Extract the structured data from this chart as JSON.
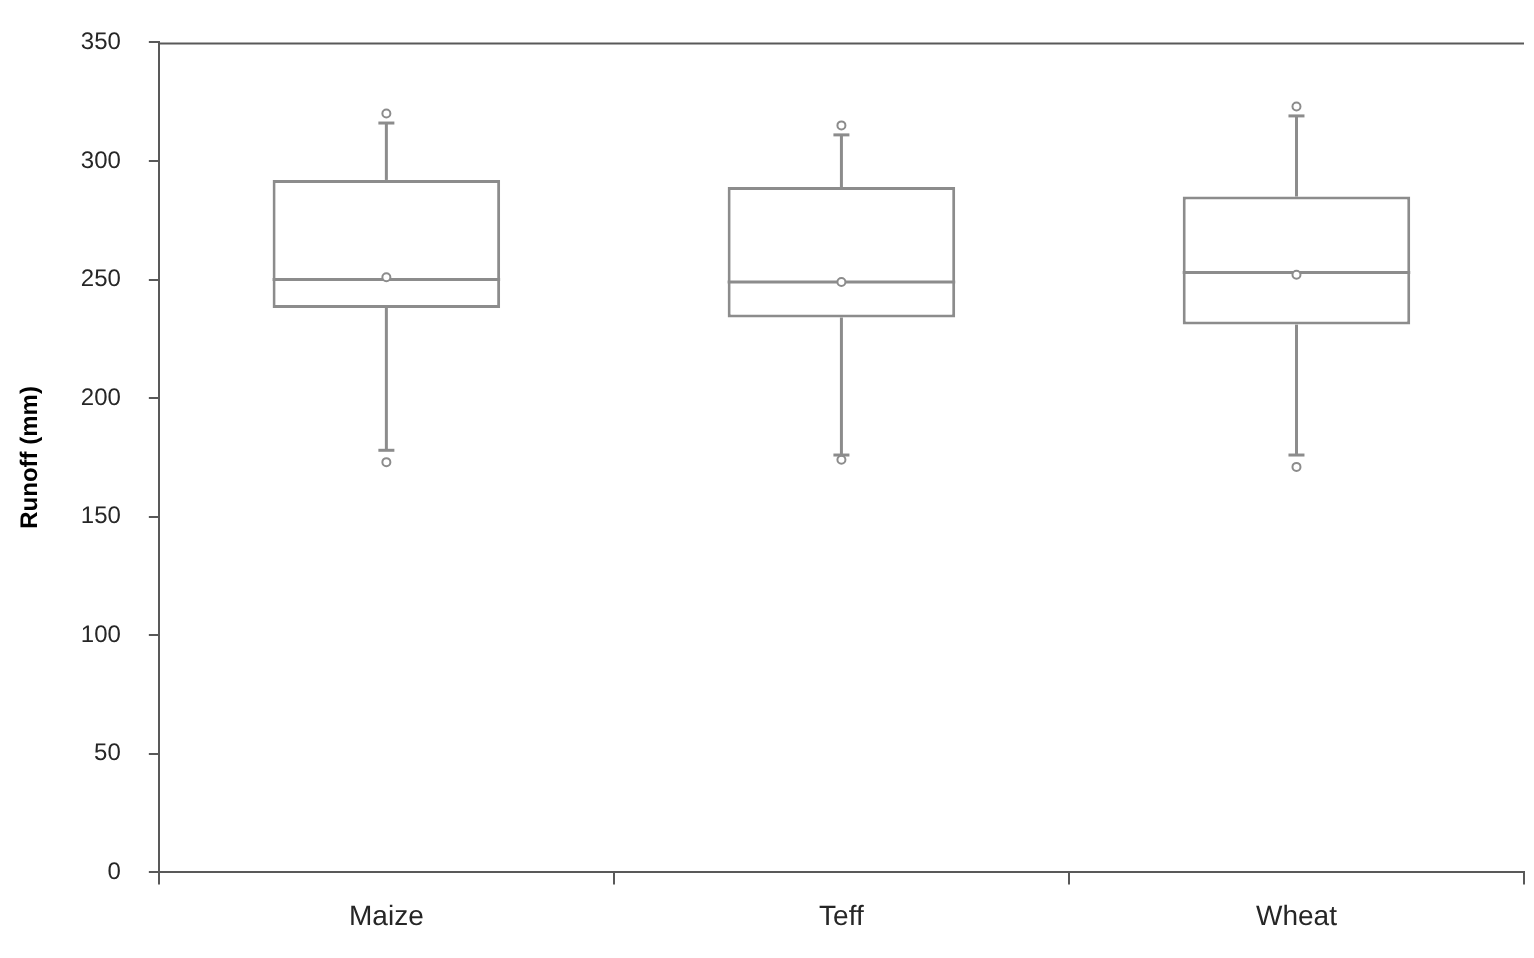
{
  "chart_data": {
    "type": "box",
    "ylabel": "Runoff (mm)",
    "categories": [
      "Maize",
      "Teff",
      "Wheat"
    ],
    "boxes": [
      {
        "low": 178,
        "q1": 238,
        "median": 250,
        "q3": 292,
        "high": 316,
        "mean": 251,
        "outliers": [
          320,
          173
        ]
      },
      {
        "low": 176,
        "q1": 234,
        "median": 249,
        "q3": 289,
        "high": 311,
        "mean": 249,
        "outliers": [
          315,
          174
        ]
      },
      {
        "low": 176,
        "q1": 231,
        "median": 253,
        "q3": 285,
        "high": 319,
        "mean": 252,
        "outliers": [
          323,
          171
        ]
      }
    ],
    "ylim": [
      0,
      350
    ],
    "yticks": [
      0,
      50,
      100,
      150,
      200,
      250,
      300,
      350
    ],
    "grid": false,
    "legend": false,
    "marker": "circle"
  }
}
